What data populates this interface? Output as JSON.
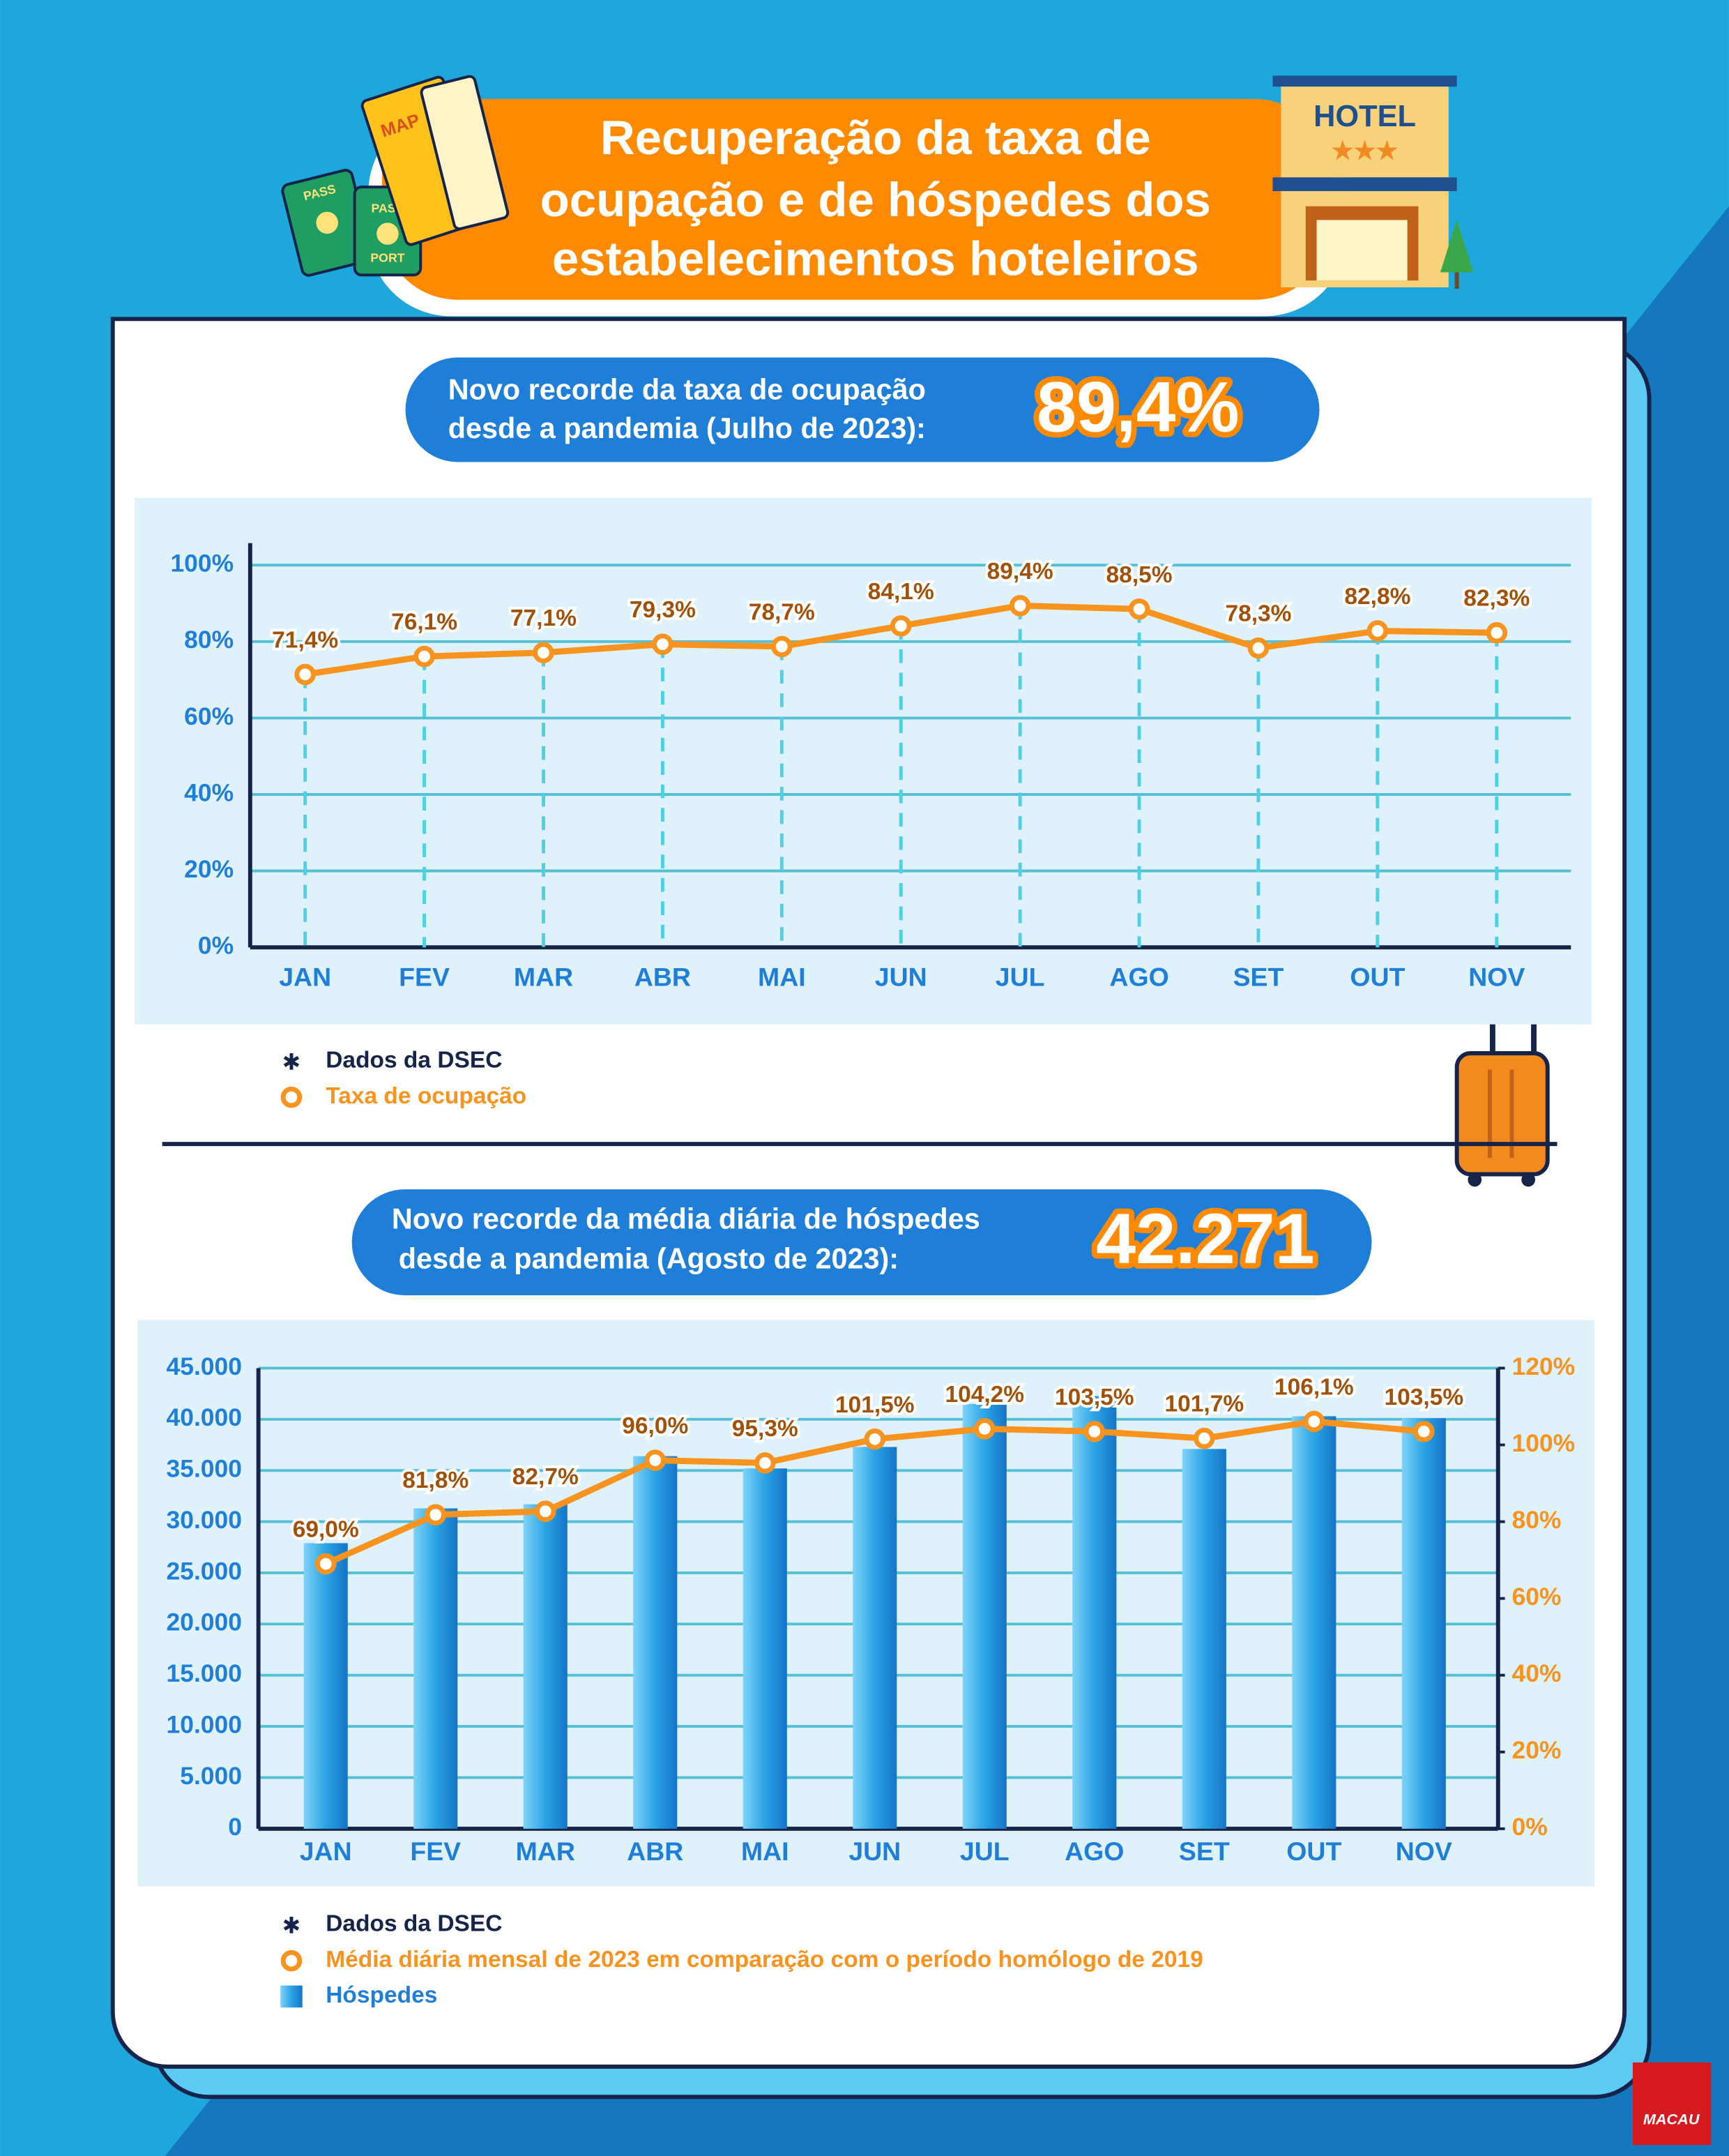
{
  "title": [
    "Recuperação da taxa de",
    "ocupação e de hóspedes dos",
    "estabelecimentos hoteleiros"
  ],
  "decor": {
    "hotel": "HOTEL",
    "map": "MAP",
    "passport": [
      "PASS",
      "PORT"
    ],
    "logo": "MACAU"
  },
  "chart_data": [
    {
      "type": "line",
      "headline": [
        "Novo recorde da taxa de ocupação",
        "desde a pandemia (Julho de 2023):"
      ],
      "record": "89,4%",
      "source": "Dados da DSEC",
      "categories": [
        "JAN",
        "FEV",
        "MAR",
        "ABR",
        "MAI",
        "JUN",
        "JUL",
        "AGO",
        "SET",
        "OUT",
        "NOV"
      ],
      "series": [
        {
          "name": "Taxa de ocupação",
          "type": "line",
          "color": "#f7931e",
          "values": [
            71.4,
            76.1,
            77.1,
            79.3,
            78.7,
            84.1,
            89.4,
            88.5,
            78.3,
            82.8,
            82.3
          ],
          "value_labels": [
            "71,4%",
            "76,1%",
            "77,1%",
            "79,3%",
            "78,7%",
            "84,1%",
            "89,4%",
            "88,5%",
            "78,3%",
            "82,8%",
            "82,3%"
          ]
        }
      ],
      "ylim": [
        0,
        100
      ],
      "yticks": [
        {
          "value": 0,
          "label": "0%"
        },
        {
          "value": 20,
          "label": "20%"
        },
        {
          "value": 40,
          "label": "40%"
        },
        {
          "value": 60,
          "label": "60%"
        },
        {
          "value": 80,
          "label": "80%"
        },
        {
          "value": 100,
          "label": "100%"
        }
      ],
      "grid": true,
      "drop_lines": true
    },
    {
      "type": "bar",
      "headline": [
        "Novo recorde da média diária de hóspedes",
        "desde a pandemia (Agosto de 2023):"
      ],
      "record": "42.271",
      "source": "Dados da DSEC",
      "categories": [
        "JAN",
        "FEV",
        "MAR",
        "ABR",
        "MAI",
        "JUN",
        "JUL",
        "AGO",
        "SET",
        "OUT",
        "NOV"
      ],
      "series": [
        {
          "name": "Média diária mensal de 2023 em comparação com o período homólogo de 2019",
          "type": "line",
          "axis": "y2",
          "color": "#f7931e",
          "values": [
            69.0,
            81.8,
            82.7,
            96.0,
            95.3,
            101.5,
            104.2,
            103.5,
            101.7,
            106.1,
            103.5
          ],
          "value_labels": [
            "69,0%",
            "81,8%",
            "82,7%",
            "96,0%",
            "95,3%",
            "101,5%",
            "104,2%",
            "103,5%",
            "101,7%",
            "106,1%",
            "103,5%"
          ]
        },
        {
          "name": "Hóspedes",
          "type": "bar",
          "color": "#1f8fd8",
          "values": [
            27900,
            31300,
            31700,
            36400,
            35200,
            37300,
            41500,
            42271,
            37100,
            40300,
            40100
          ]
        }
      ],
      "ylim": [
        0,
        45000
      ],
      "yticks": [
        0,
        {
          "value": 5000,
          "label": "5.000"
        },
        {
          "value": 10000,
          "label": "10.000"
        },
        {
          "value": 15000,
          "label": "15.000"
        },
        {
          "value": 20000,
          "label": "20.000"
        },
        {
          "value": 25000,
          "label": "25.000"
        },
        {
          "value": 30000,
          "label": "30.000"
        },
        {
          "value": 35000,
          "label": "35.000"
        },
        {
          "value": 40000,
          "label": "40.000"
        },
        {
          "value": 45000,
          "label": "45.000"
        }
      ],
      "y2lim": [
        0,
        120
      ],
      "y2ticks": [
        {
          "value": 0,
          "label": "0%"
        },
        {
          "value": 20,
          "label": "20%"
        },
        {
          "value": 40,
          "label": "40%"
        },
        {
          "value": 60,
          "label": "60%"
        },
        {
          "value": 80,
          "label": "80%"
        },
        {
          "value": 100,
          "label": "100%"
        },
        {
          "value": 120,
          "label": "120%"
        }
      ],
      "grid": true,
      "drop_lines": false
    }
  ]
}
